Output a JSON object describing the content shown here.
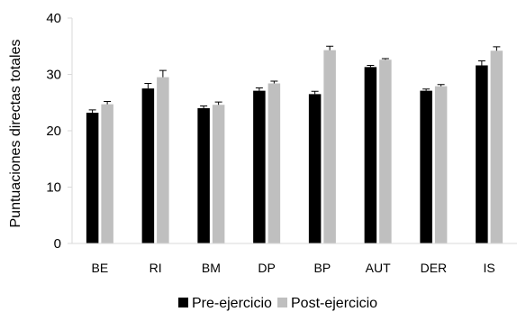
{
  "chart_data": {
    "type": "bar",
    "title": "",
    "xlabel": "",
    "ylabel": "Puntuaciones directas totales",
    "ylim": [
      0,
      40
    ],
    "yticks": [
      0,
      10,
      20,
      30,
      40
    ],
    "grid": false,
    "legend_position": "bottom",
    "categories": [
      "BE",
      "RI",
      "BM",
      "DP",
      "BP",
      "AUT",
      "DER",
      "IS"
    ],
    "series": [
      {
        "name": "Pre-ejercicio",
        "color": "#000000",
        "values": [
          23.2,
          27.5,
          24.0,
          27.1,
          26.5,
          31.3,
          27.1,
          31.6
        ],
        "errors": [
          0.5,
          0.9,
          0.4,
          0.5,
          0.5,
          0.3,
          0.3,
          0.8
        ]
      },
      {
        "name": "Post-ejercicio",
        "color": "#bfbfbf",
        "values": [
          24.7,
          29.5,
          24.6,
          28.4,
          34.3,
          32.6,
          27.9,
          34.2
        ],
        "errors": [
          0.5,
          1.2,
          0.5,
          0.4,
          0.7,
          0.2,
          0.3,
          0.7
        ]
      }
    ]
  }
}
